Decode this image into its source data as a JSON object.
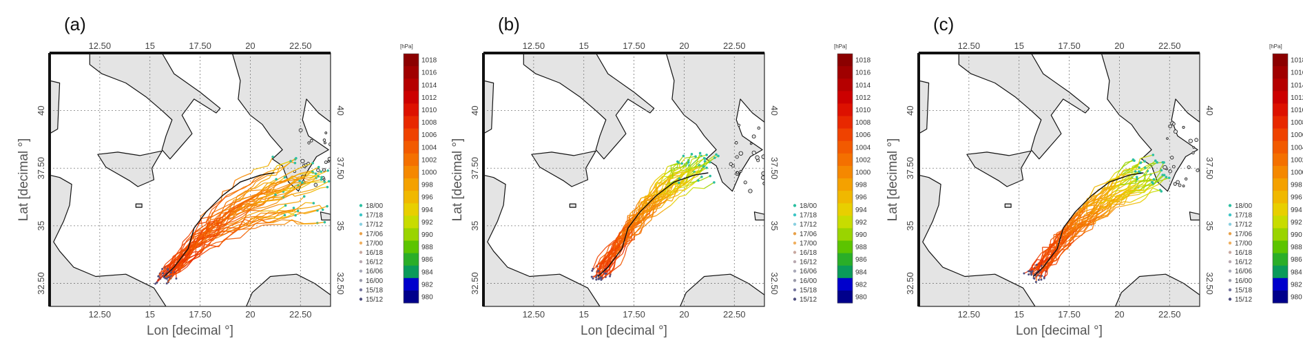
{
  "figure": {
    "panels": [
      {
        "label": "(a)",
        "scenario": "a"
      },
      {
        "label": "(b)",
        "scenario": "b"
      },
      {
        "label": "(c)",
        "scenario": "c"
      }
    ],
    "xlabel": "Lon [decimal °]",
    "ylabel": "Lat [decimal °]",
    "lon_ticks": [
      "12.50",
      "15",
      "17.50",
      "20",
      "22.50"
    ],
    "lon_tick_values": [
      12.5,
      15,
      17.5,
      20,
      22.5
    ],
    "lat_ticks": [
      "32.50",
      "35",
      "37.50",
      "40"
    ],
    "lat_tick_values": [
      32.5,
      35,
      37.5,
      40
    ],
    "lon_range": [
      10.0,
      24.0
    ],
    "lat_range": [
      31.5,
      42.5
    ],
    "grid": "dotted"
  },
  "colorbar": {
    "unit": "[hPa]",
    "levels": [
      "1018",
      "1016",
      "1014",
      "1012",
      "1010",
      "1008",
      "1006",
      "1004",
      "1002",
      "1000",
      "998",
      "996",
      "994",
      "992",
      "990",
      "988",
      "986",
      "984",
      "982",
      "980"
    ],
    "colors": [
      "#8b0000",
      "#a00000",
      "#b50000",
      "#cc0000",
      "#dd1100",
      "#e82800",
      "#ef4200",
      "#f25a00",
      "#f47000",
      "#f58800",
      "#f4a100",
      "#f0b800",
      "#e8cf00",
      "#c8dc00",
      "#9ad400",
      "#5cc400",
      "#2aae28",
      "#0a9a5a",
      "#0000cc",
      "#00008b"
    ]
  },
  "legend": {
    "items": [
      {
        "label": "18/00",
        "color": "#2bbfa0"
      },
      {
        "label": "17/18",
        "color": "#3ec6c6"
      },
      {
        "label": "17/12",
        "color": "#8ad0e0"
      },
      {
        "label": "17/06",
        "color": "#e8a048"
      },
      {
        "label": "17/00",
        "color": "#f0b060"
      },
      {
        "label": "16/18",
        "color": "#c8a8a0"
      },
      {
        "label": "16/12",
        "color": "#b8a8b0"
      },
      {
        "label": "16/06",
        "color": "#a8a8b8"
      },
      {
        "label": "16/00",
        "color": "#9898a8"
      },
      {
        "label": "15/18",
        "color": "#7878a0"
      },
      {
        "label": "15/12",
        "color": "#505080"
      }
    ]
  }
}
